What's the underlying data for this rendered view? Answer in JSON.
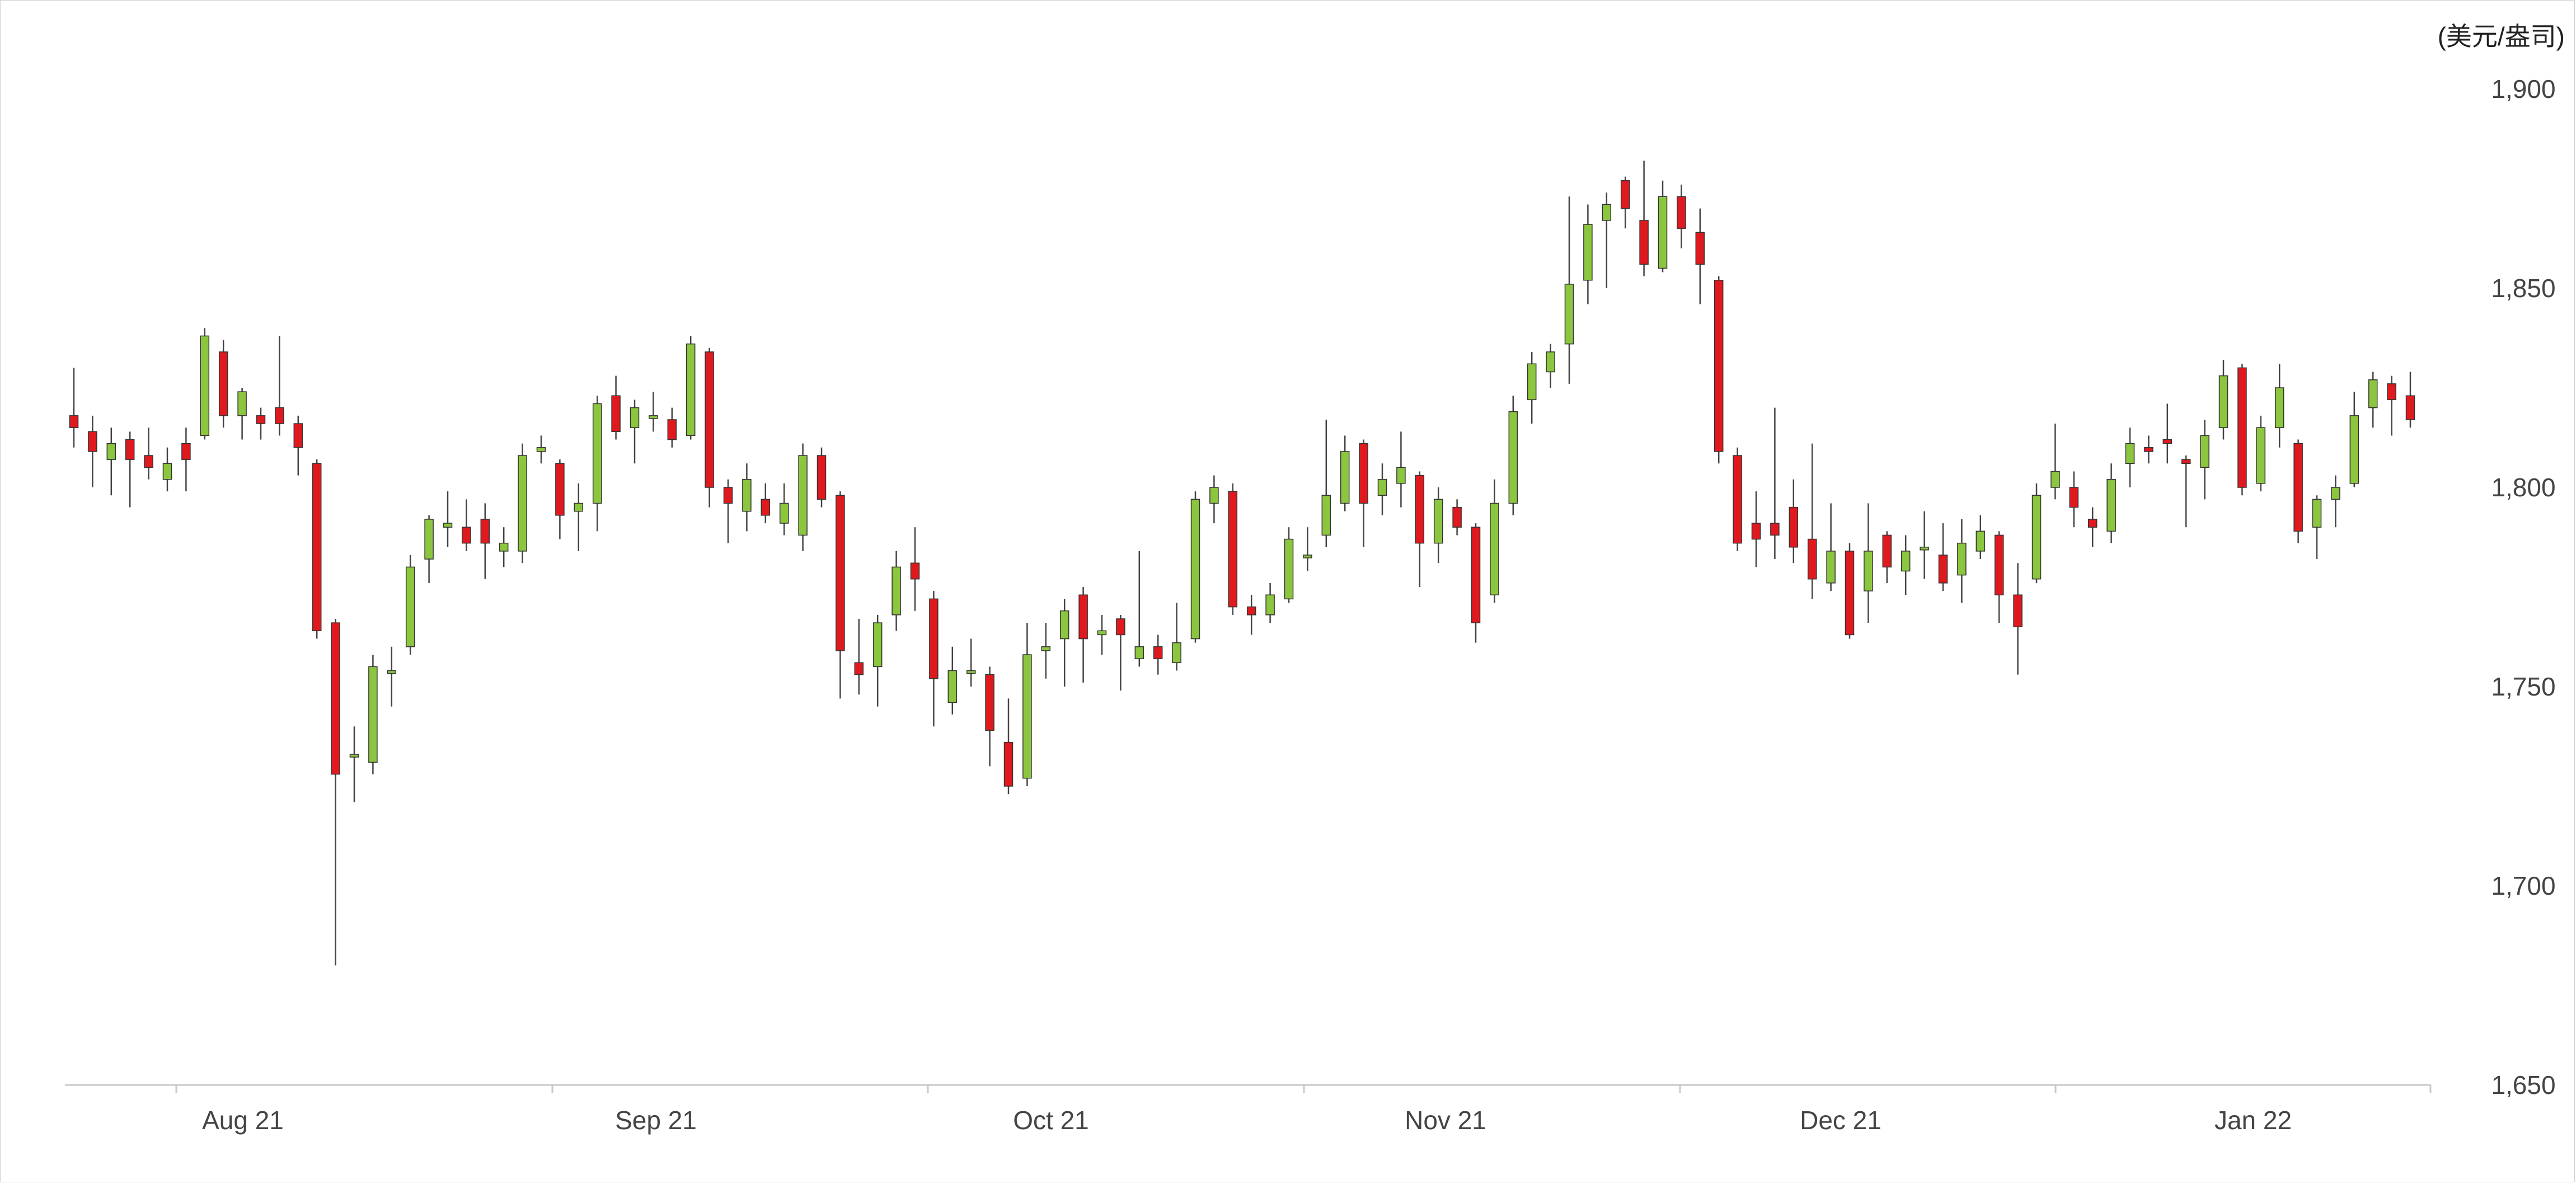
{
  "chart_data": {
    "type": "candlestick",
    "unit_label": "(美元/盎司)",
    "x_tick_labels": [
      "Aug 21",
      "Sep 21",
      "Oct 21",
      "Nov 21",
      "Dec 21",
      "Jan 22"
    ],
    "y_ticks": [
      "1,650",
      "1,700",
      "1,750",
      "1,800",
      "1,850",
      "1,900"
    ],
    "ylim": [
      1650,
      1900
    ],
    "grid": false,
    "colors": {
      "up": "#8cc63f",
      "down": "#e0191f",
      "wick": "#444444",
      "axis": "#c8c8c8",
      "text": "#444444"
    },
    "candles": [
      [
        1818,
        1815,
        1830,
        1810
      ],
      [
        1814,
        1809,
        1818,
        1800
      ],
      [
        1807,
        1811,
        1815,
        1798
      ],
      [
        1812,
        1807,
        1814,
        1795
      ],
      [
        1808,
        1805,
        1815,
        1802
      ],
      [
        1802,
        1806,
        1810,
        1799
      ],
      [
        1811,
        1807,
        1815,
        1799
      ],
      [
        1813,
        1838,
        1840,
        1812
      ],
      [
        1834,
        1818,
        1837,
        1815
      ],
      [
        1818,
        1824,
        1825,
        1812
      ],
      [
        1818,
        1816,
        1820,
        1812
      ],
      [
        1820,
        1816,
        1838,
        1813
      ],
      [
        1816,
        1810,
        1818,
        1803
      ],
      [
        1806,
        1764,
        1807,
        1762
      ],
      [
        1766,
        1728,
        1767,
        1680
      ],
      [
        1733,
        1733,
        1740,
        1721
      ],
      [
        1731,
        1755,
        1758,
        1728
      ],
      [
        1754,
        1754,
        1760,
        1745
      ],
      [
        1760,
        1780,
        1783,
        1758
      ],
      [
        1782,
        1792,
        1793,
        1776
      ],
      [
        1790,
        1791,
        1799,
        1785
      ],
      [
        1790,
        1786,
        1797,
        1784
      ],
      [
        1792,
        1786,
        1796,
        1777
      ],
      [
        1784,
        1786,
        1790,
        1780
      ],
      [
        1784,
        1808,
        1811,
        1781
      ],
      [
        1809,
        1810,
        1813,
        1806
      ],
      [
        1806,
        1793,
        1807,
        1787
      ],
      [
        1794,
        1796,
        1801,
        1784
      ],
      [
        1796,
        1821,
        1823,
        1789
      ],
      [
        1823,
        1814,
        1828,
        1812
      ],
      [
        1815,
        1820,
        1822,
        1806
      ],
      [
        1818,
        1818,
        1824,
        1814
      ],
      [
        1817,
        1812,
        1820,
        1810
      ],
      [
        1813,
        1836,
        1838,
        1812
      ],
      [
        1834,
        1800,
        1835,
        1795
      ],
      [
        1800,
        1796,
        1802,
        1786
      ],
      [
        1794,
        1802,
        1806,
        1789
      ],
      [
        1797,
        1793,
        1801,
        1791
      ],
      [
        1791,
        1796,
        1801,
        1788
      ],
      [
        1788,
        1808,
        1811,
        1784
      ],
      [
        1808,
        1797,
        1810,
        1795
      ],
      [
        1798,
        1759,
        1799,
        1747
      ],
      [
        1756,
        1753,
        1767,
        1748
      ],
      [
        1755,
        1766,
        1768,
        1745
      ],
      [
        1768,
        1780,
        1784,
        1764
      ],
      [
        1781,
        1777,
        1790,
        1769
      ],
      [
        1772,
        1752,
        1774,
        1740
      ],
      [
        1746,
        1754,
        1760,
        1743
      ],
      [
        1754,
        1754,
        1762,
        1750
      ],
      [
        1753,
        1739,
        1755,
        1730
      ],
      [
        1736,
        1725,
        1747,
        1723
      ],
      [
        1727,
        1758,
        1766,
        1725
      ],
      [
        1759,
        1760,
        1766,
        1752
      ],
      [
        1762,
        1769,
        1772,
        1750
      ],
      [
        1773,
        1762,
        1775,
        1751
      ],
      [
        1763,
        1764,
        1768,
        1758
      ],
      [
        1767,
        1763,
        1768,
        1749
      ],
      [
        1757,
        1760,
        1784,
        1755
      ],
      [
        1760,
        1757,
        1763,
        1753
      ],
      [
        1756,
        1761,
        1771,
        1754
      ],
      [
        1762,
        1797,
        1799,
        1761
      ],
      [
        1796,
        1800,
        1803,
        1791
      ],
      [
        1799,
        1770,
        1801,
        1768
      ],
      [
        1770,
        1768,
        1773,
        1763
      ],
      [
        1768,
        1773,
        1776,
        1766
      ],
      [
        1772,
        1787,
        1790,
        1771
      ],
      [
        1783,
        1783,
        1790,
        1779
      ],
      [
        1788,
        1798,
        1817,
        1785
      ],
      [
        1796,
        1809,
        1813,
        1794
      ],
      [
        1811,
        1796,
        1812,
        1785
      ],
      [
        1798,
        1802,
        1806,
        1793
      ],
      [
        1801,
        1805,
        1814,
        1795
      ],
      [
        1803,
        1786,
        1804,
        1775
      ],
      [
        1786,
        1797,
        1800,
        1781
      ],
      [
        1795,
        1790,
        1797,
        1788
      ],
      [
        1790,
        1766,
        1791,
        1761
      ],
      [
        1773,
        1796,
        1802,
        1771
      ],
      [
        1796,
        1819,
        1823,
        1793
      ],
      [
        1822,
        1831,
        1834,
        1816
      ],
      [
        1829,
        1834,
        1836,
        1825
      ],
      [
        1836,
        1851,
        1873,
        1826
      ],
      [
        1852,
        1866,
        1871,
        1846
      ],
      [
        1867,
        1871,
        1874,
        1850
      ],
      [
        1877,
        1870,
        1878,
        1865
      ],
      [
        1867,
        1856,
        1882,
        1853
      ],
      [
        1855,
        1873,
        1877,
        1854
      ],
      [
        1873,
        1865,
        1876,
        1860
      ],
      [
        1864,
        1856,
        1870,
        1846
      ],
      [
        1852,
        1809,
        1853,
        1806
      ],
      [
        1808,
        1786,
        1810,
        1784
      ],
      [
        1791,
        1787,
        1799,
        1780
      ],
      [
        1791,
        1788,
        1820,
        1782
      ],
      [
        1795,
        1785,
        1802,
        1781
      ],
      [
        1787,
        1777,
        1811,
        1772
      ],
      [
        1776,
        1784,
        1796,
        1774
      ],
      [
        1784,
        1763,
        1786,
        1762
      ],
      [
        1774,
        1784,
        1796,
        1766
      ],
      [
        1788,
        1780,
        1789,
        1776
      ],
      [
        1779,
        1784,
        1788,
        1773
      ],
      [
        1785,
        1785,
        1794,
        1777
      ],
      [
        1783,
        1776,
        1791,
        1774
      ],
      [
        1778,
        1786,
        1792,
        1771
      ],
      [
        1784,
        1789,
        1793,
        1782
      ],
      [
        1788,
        1773,
        1789,
        1766
      ],
      [
        1773,
        1765,
        1781,
        1753
      ],
      [
        1777,
        1798,
        1801,
        1776
      ],
      [
        1800,
        1804,
        1816,
        1797
      ],
      [
        1800,
        1795,
        1804,
        1790
      ],
      [
        1792,
        1790,
        1795,
        1785
      ],
      [
        1789,
        1802,
        1806,
        1786
      ],
      [
        1806,
        1811,
        1815,
        1800
      ],
      [
        1810,
        1809,
        1813,
        1806
      ],
      [
        1812,
        1811,
        1821,
        1806
      ],
      [
        1807,
        1806,
        1808,
        1790
      ],
      [
        1805,
        1813,
        1817,
        1797
      ],
      [
        1815,
        1828,
        1832,
        1812
      ],
      [
        1830,
        1800,
        1831,
        1798
      ],
      [
        1801,
        1815,
        1818,
        1799
      ],
      [
        1815,
        1825,
        1831,
        1810
      ],
      [
        1811,
        1789,
        1812,
        1786
      ],
      [
        1790,
        1797,
        1798,
        1782
      ],
      [
        1797,
        1800,
        1803,
        1790
      ],
      [
        1801,
        1818,
        1824,
        1800
      ],
      [
        1820,
        1827,
        1829,
        1815
      ],
      [
        1826,
        1822,
        1828,
        1813
      ],
      [
        1823,
        1817,
        1829,
        1815
      ]
    ]
  }
}
